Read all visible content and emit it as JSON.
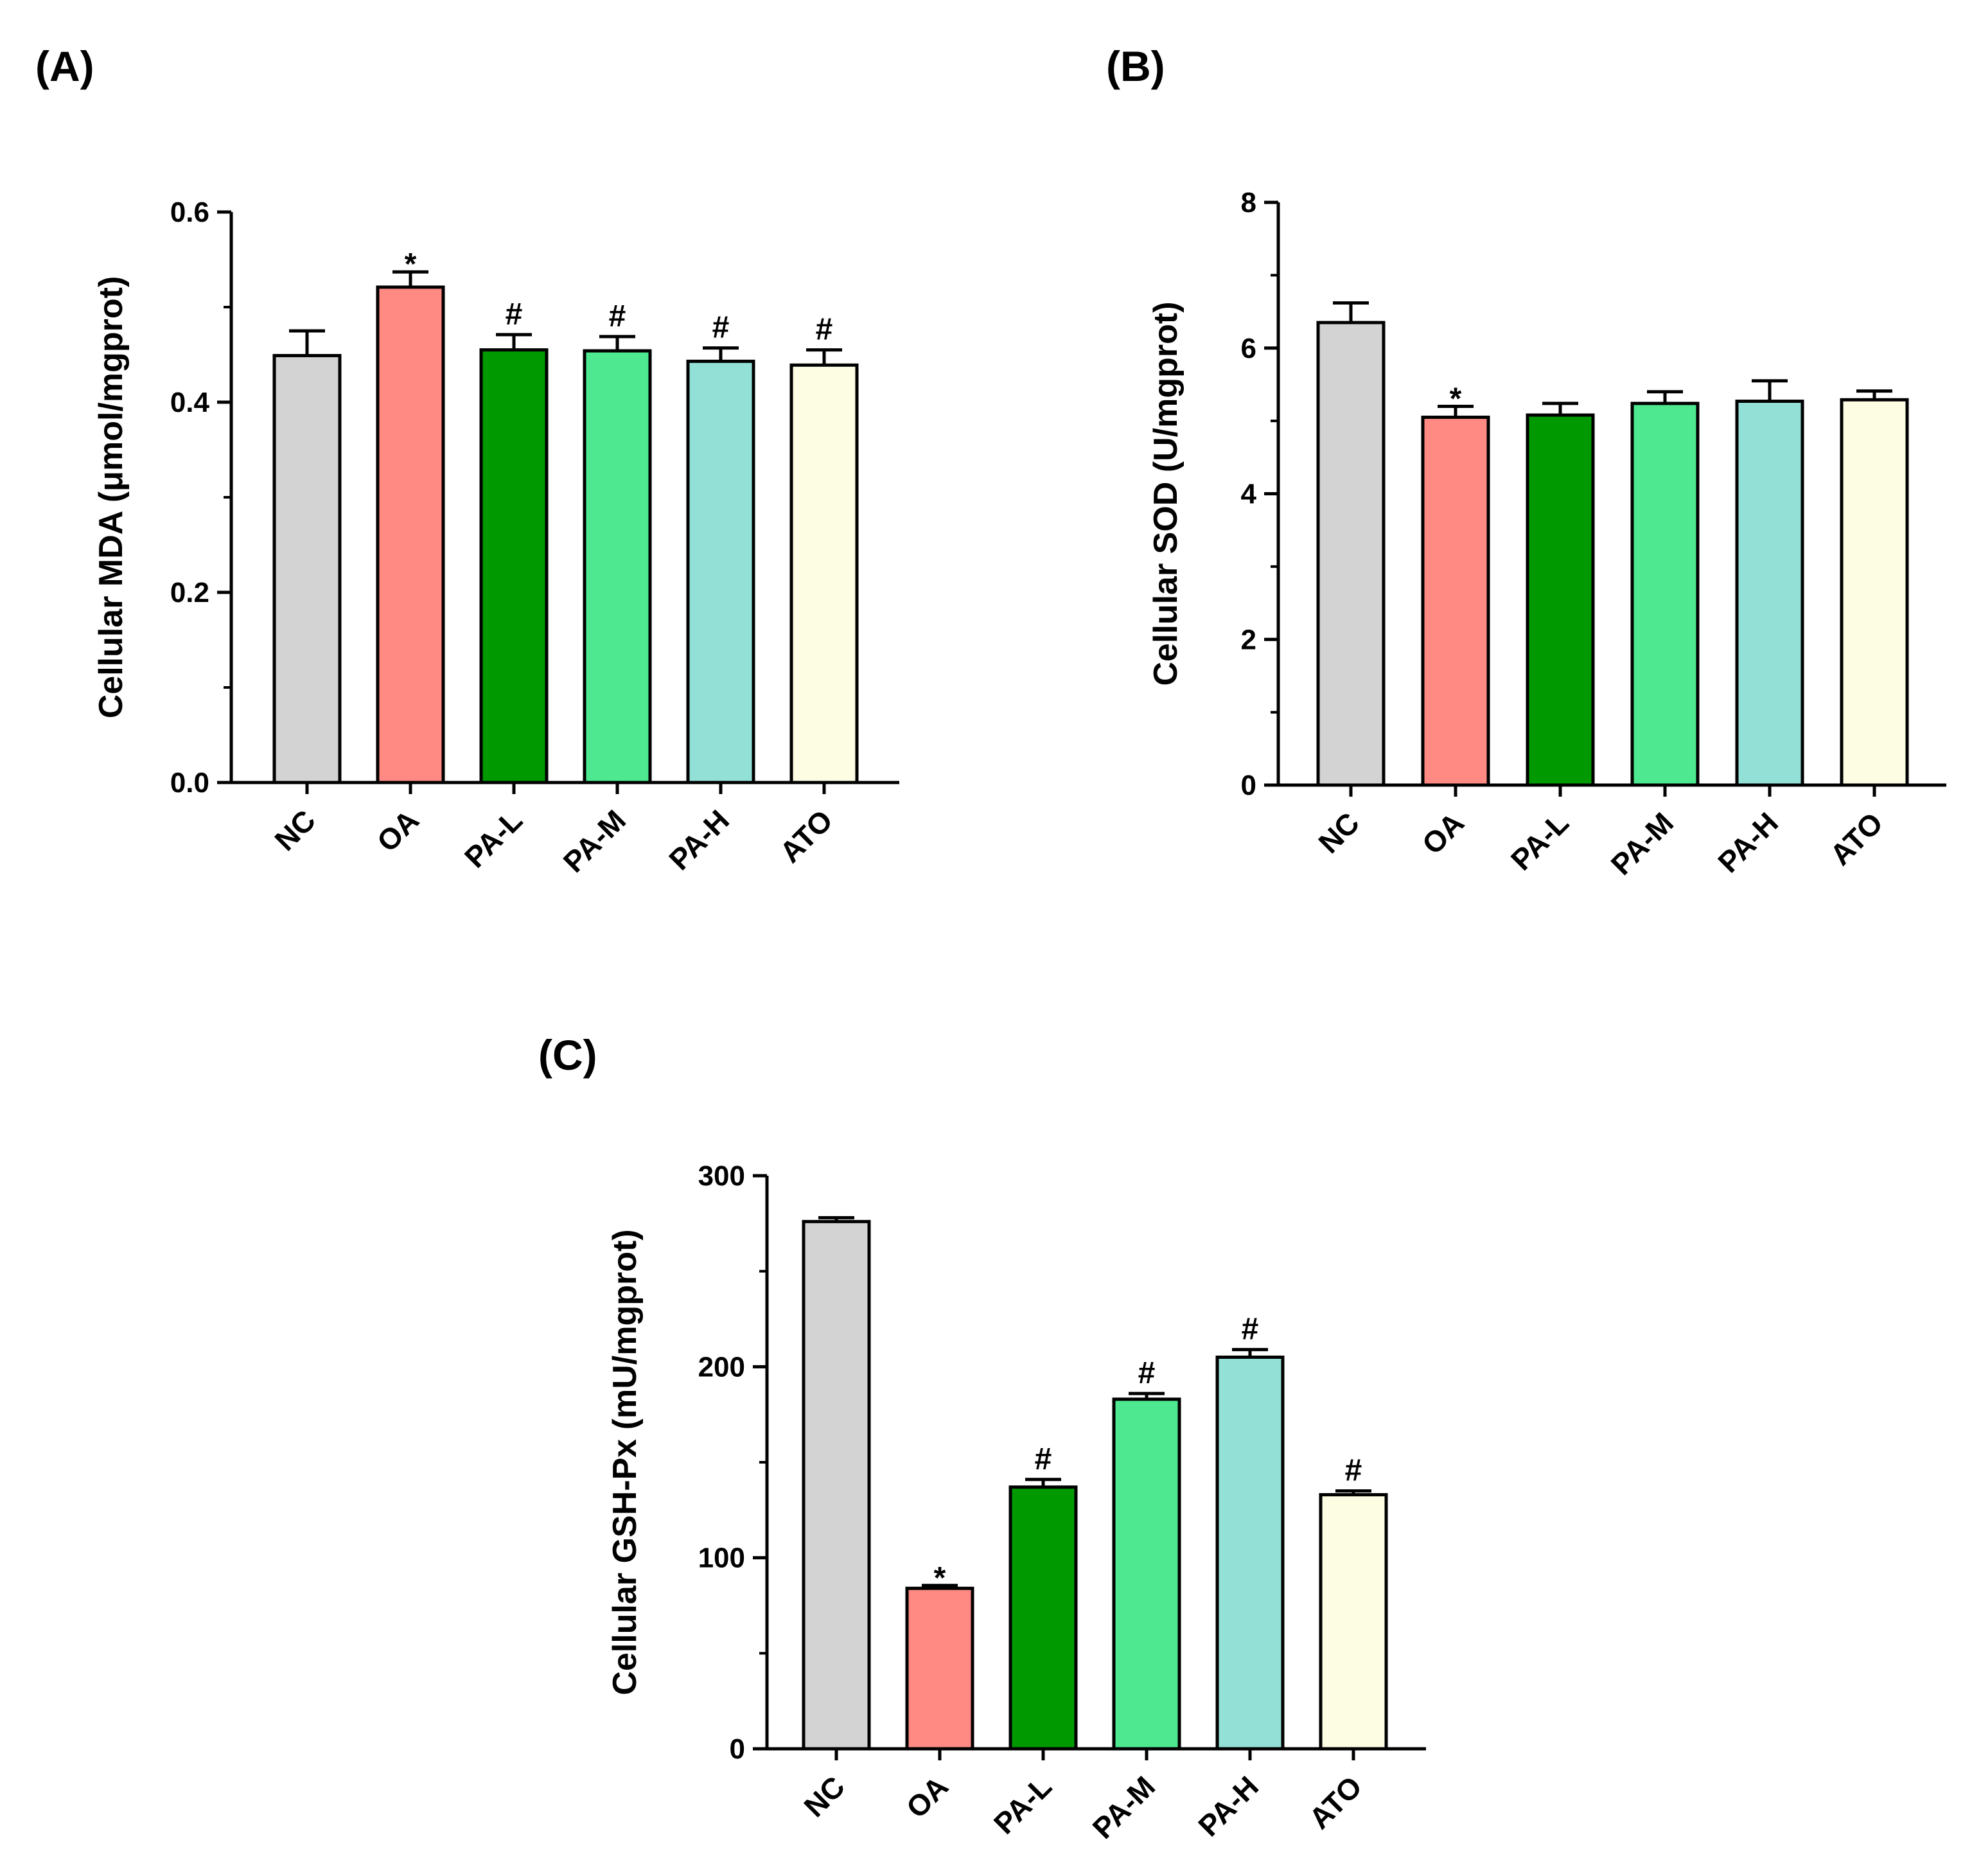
{
  "chart_data": [
    {
      "type": "bar",
      "panel_label": "(A)",
      "categories": [
        "NC",
        "OA",
        "PA-L",
        "PA-M",
        "PA-H",
        "ATO"
      ],
      "values": [
        0.449,
        0.521,
        0.455,
        0.454,
        0.443,
        0.439
      ],
      "errors": [
        0.026,
        0.016,
        0.016,
        0.015,
        0.014,
        0.016
      ],
      "significance": [
        "",
        "*",
        "#",
        "#",
        "#",
        "#"
      ],
      "colors": [
        "#d3d3d3",
        "#ff8a84",
        "#009900",
        "#4de890",
        "#93e0d6",
        "#fdfde4"
      ],
      "ylabel": "Cellular MDA (μmol/mgprot)",
      "xlabel": "",
      "ylim": [
        0,
        0.6
      ],
      "yticks": [
        "0.0",
        "0.2",
        "0.4",
        "0.6"
      ]
    },
    {
      "type": "bar",
      "panel_label": "(B)",
      "categories": [
        "NC",
        "OA",
        "PA-L",
        "PA-M",
        "PA-H",
        "ATO"
      ],
      "values": [
        6.35,
        5.05,
        5.08,
        5.24,
        5.27,
        5.29
      ],
      "errors": [
        0.27,
        0.15,
        0.16,
        0.16,
        0.28,
        0.12
      ],
      "significance": [
        "",
        "*",
        "",
        "",
        "",
        ""
      ],
      "colors": [
        "#d3d3d3",
        "#ff8a84",
        "#009900",
        "#4de890",
        "#93e0d6",
        "#fdfde4"
      ],
      "ylabel": "Cellular SOD (U/mgprot)",
      "xlabel": "",
      "ylim": [
        0,
        8
      ],
      "yticks": [
        "0",
        "2",
        "4",
        "6",
        "8"
      ]
    },
    {
      "type": "bar",
      "panel_label": "(C)",
      "categories": [
        "NC",
        "OA",
        "PA-L",
        "PA-M",
        "PA-H",
        "ATO"
      ],
      "values": [
        276,
        84,
        137,
        183,
        205,
        133
      ],
      "errors": [
        2,
        1.5,
        4,
        3,
        4,
        2
      ],
      "significance": [
        "",
        "*",
        "#",
        "#",
        "#",
        "#"
      ],
      "colors": [
        "#d3d3d3",
        "#ff8a84",
        "#009900",
        "#4de890",
        "#93e0d6",
        "#fdfde4"
      ],
      "ylabel": "Cellular GSH-Px (mU/mgprot)",
      "xlabel": "",
      "ylim": [
        0,
        300
      ],
      "yticks": [
        "0",
        "100",
        "200",
        "300"
      ]
    }
  ]
}
